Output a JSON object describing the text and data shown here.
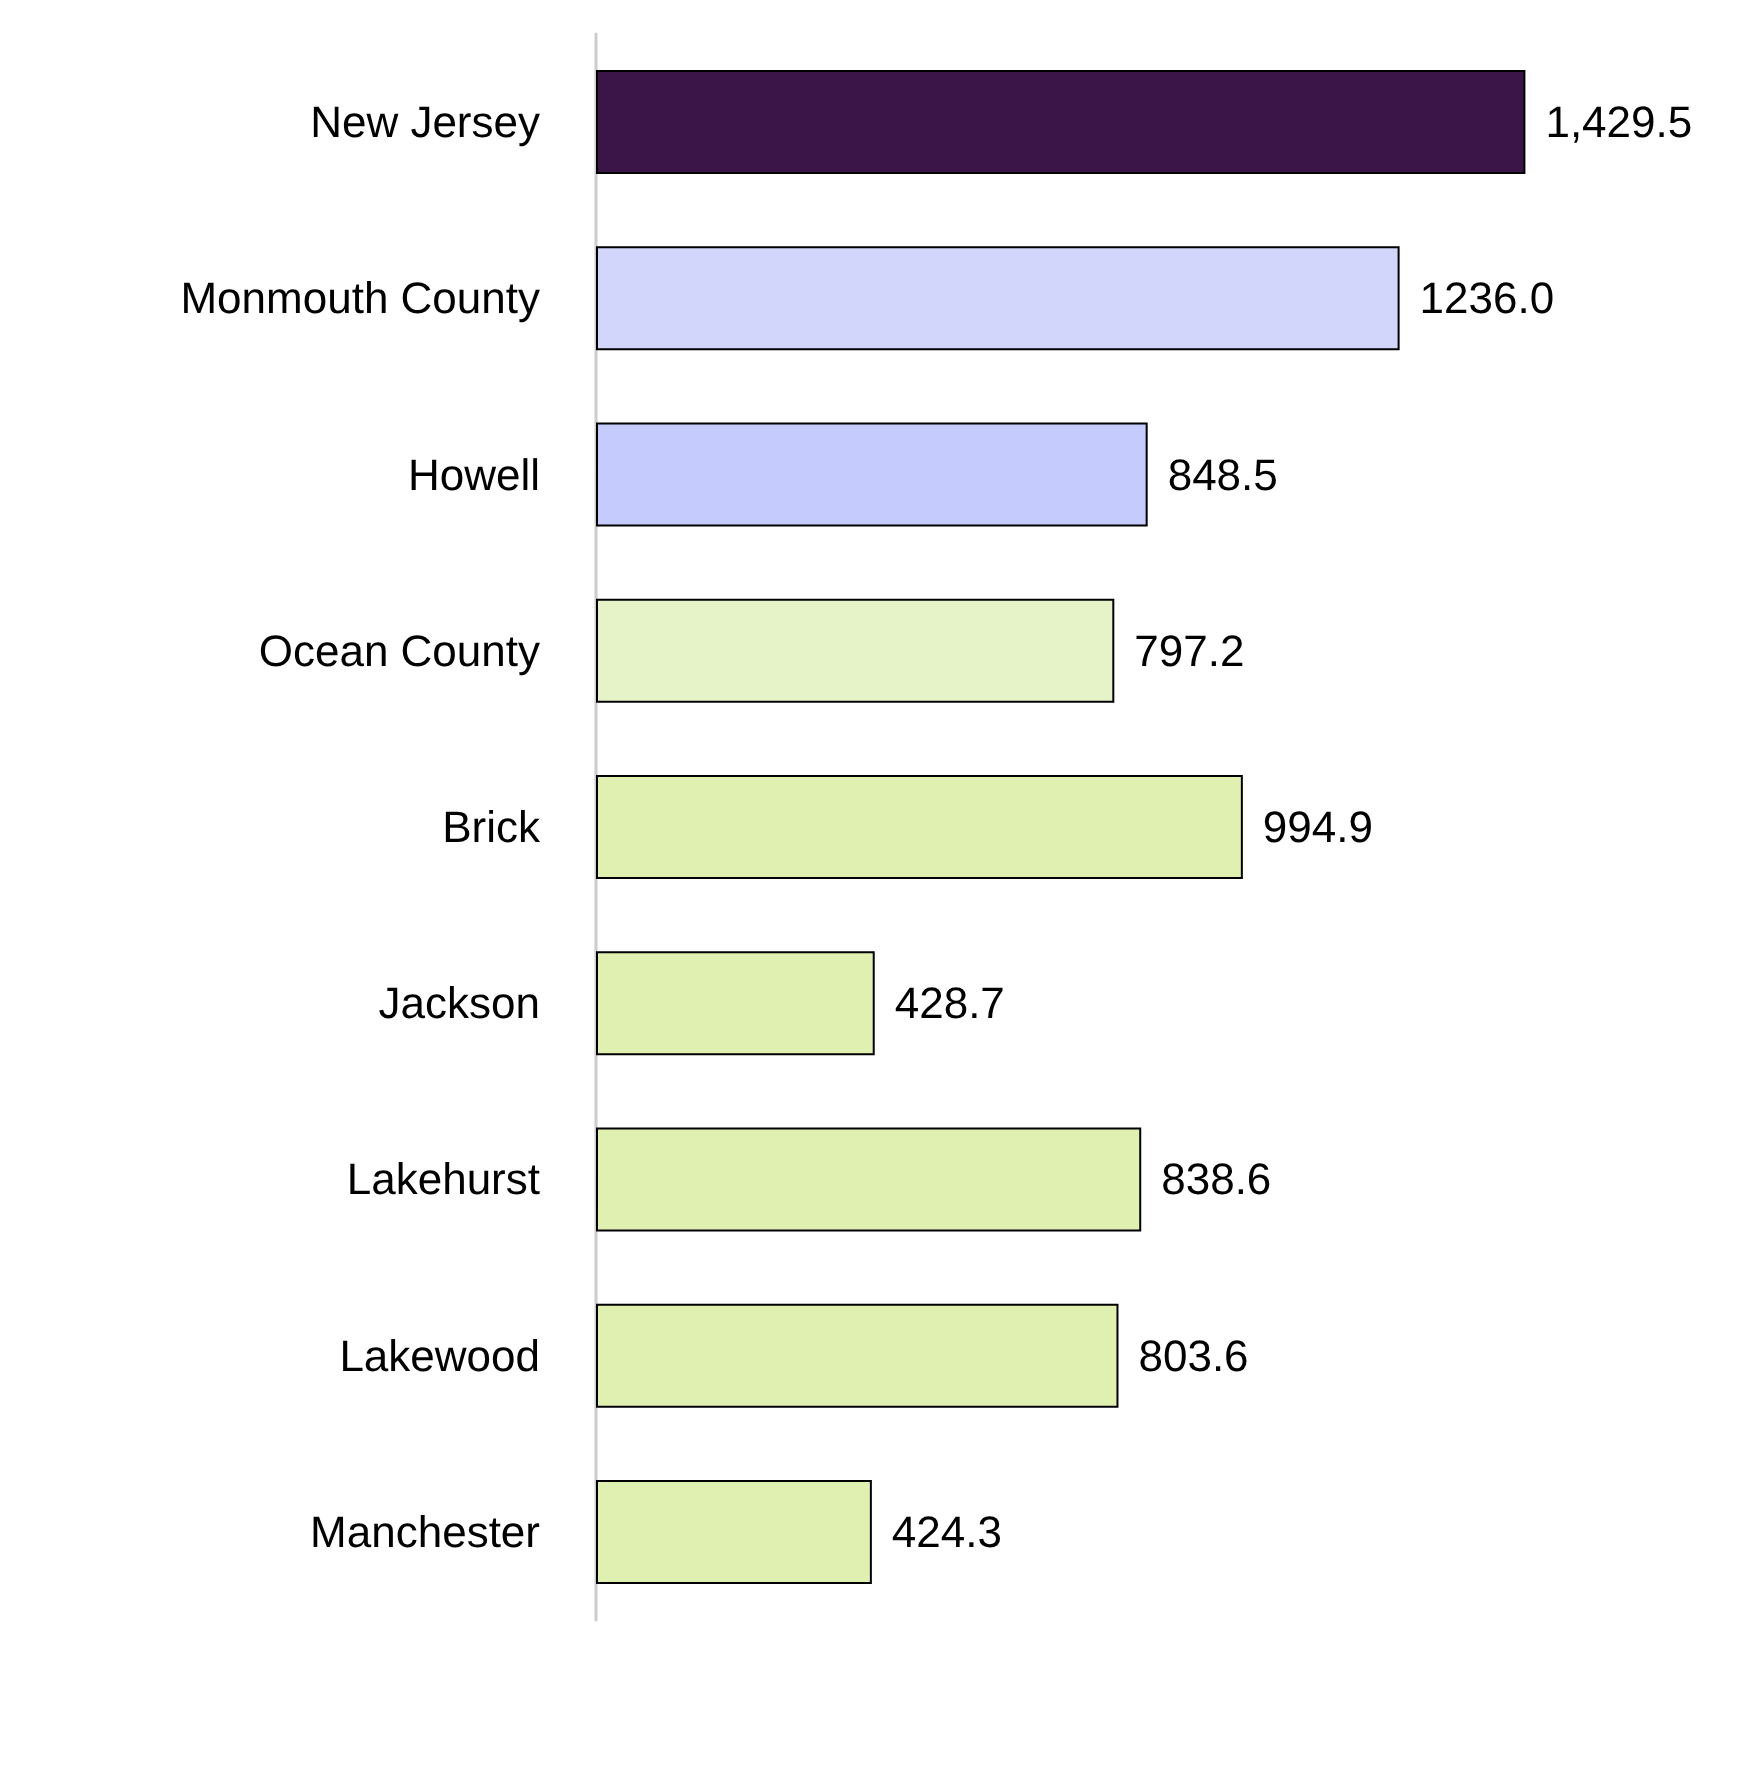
{
  "chart_data": {
    "type": "bar",
    "orientation": "horizontal",
    "categories": [
      "New Jersey",
      "Monmouth County",
      "Howell",
      "Ocean County",
      "Brick",
      "Jackson",
      "Lakehurst",
      "Lakewood",
      "Manchester"
    ],
    "values": [
      1429.5,
      1236.0,
      848.5,
      797.2,
      994.9,
      428.7,
      838.6,
      803.6,
      424.3
    ],
    "value_labels": [
      "1,429.5",
      "1236.0",
      "848.5",
      "797.2",
      "994.9",
      "428.7",
      "838.6",
      "803.6",
      "424.3"
    ],
    "colors": [
      "#3b1548",
      "#d2d6fb",
      "#c5cbfc",
      "#e6f2c8",
      "#e0f0b0",
      "#e0f0b0",
      "#e0f0b0",
      "#e0f0b0",
      "#e0f0b0"
    ]
  }
}
